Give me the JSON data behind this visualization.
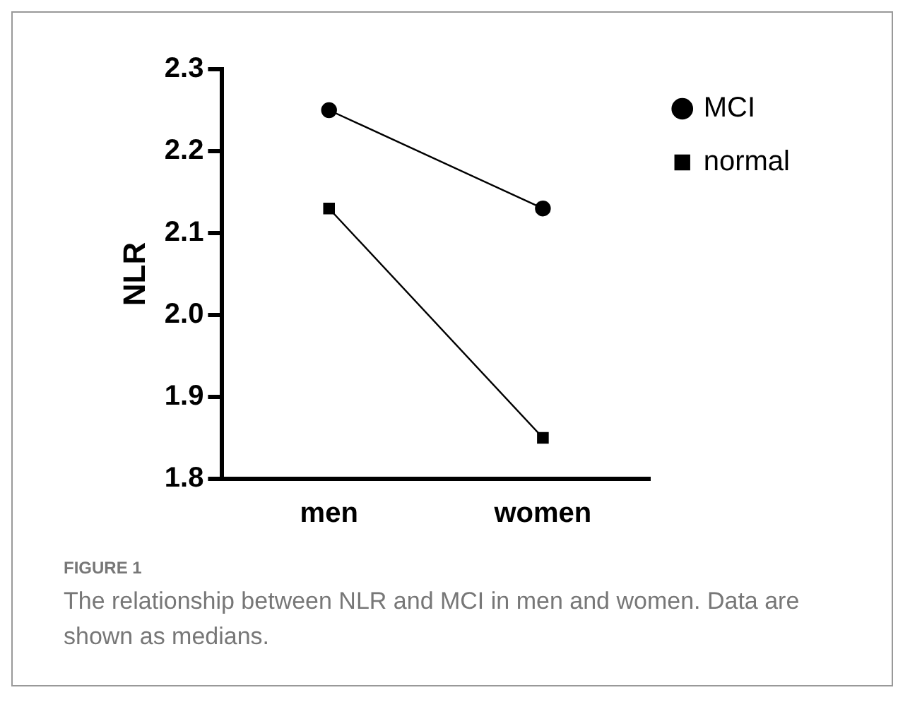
{
  "chart_data": {
    "type": "line",
    "title": "FIGURE 1",
    "annotations": [
      "The relationship between NLR and MCI in men and women. Data are shown as medians."
    ],
    "ylabel": "NLR",
    "categories": [
      "men",
      "women"
    ],
    "series": [
      {
        "name": "MCI",
        "color": "#000000",
        "marker": "circle",
        "values": [
          2.25,
          2.13
        ]
      },
      {
        "name": "normal",
        "color": "#000000",
        "marker": "square",
        "values": [
          2.13,
          1.85
        ]
      }
    ],
    "ylim": [
      1.8,
      2.3
    ],
    "yticks": [
      1.8,
      1.9,
      {
        "value": 2,
        "label": "2.0"
      },
      2.1,
      2.2,
      2.3
    ],
    "grid": false,
    "legend": "top right",
    "line_style": "solid"
  }
}
